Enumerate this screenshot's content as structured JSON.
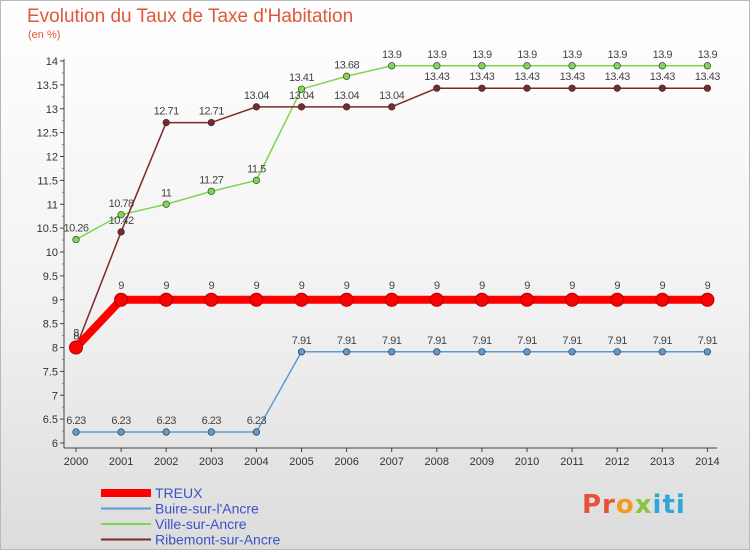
{
  "title": "Evolution du Taux de Taxe d'Habitation",
  "unit": "(en %)",
  "logo_text": "Proxiti",
  "chart_data": {
    "type": "line",
    "title": "Evolution du Taux de Taxe d'Habitation",
    "ylabel": "(en %)",
    "xlabel": "",
    "x": [
      "2000",
      "2001",
      "2002",
      "2003",
      "2004",
      "2005",
      "2006",
      "2007",
      "2008",
      "2009",
      "2010",
      "2011",
      "2012",
      "2013",
      "2014"
    ],
    "ylim": [
      6,
      14
    ],
    "yticks": [
      6,
      6.5,
      7,
      7.5,
      8,
      8.5,
      9,
      9.5,
      10,
      10.5,
      11,
      11.5,
      12,
      12.5,
      13,
      13.5,
      14
    ],
    "ytick_labels": [
      "6",
      "6.5",
      "7",
      "7.5",
      "8",
      "8.5",
      "9",
      "9.5",
      "10",
      "10.5",
      "11",
      "11.5",
      "12",
      "12.5",
      "13",
      "13.5",
      "14"
    ],
    "grid": false,
    "legend_position": "bottom-left",
    "series": [
      {
        "name": "TREUX",
        "color": "#ff0000",
        "values": [
          8,
          9,
          9,
          9,
          9,
          9,
          9,
          9,
          9,
          9,
          9,
          9,
          9,
          9,
          9
        ],
        "labels": [
          "8",
          "9",
          "9",
          "9",
          "9",
          "9",
          "9",
          "9",
          "9",
          "9",
          "9",
          "9",
          "9",
          "9",
          "9"
        ],
        "highlight": true
      },
      {
        "name": "Buire-sur-l'Ancre",
        "color": "#5b9bd5",
        "values": [
          6.23,
          6.23,
          6.23,
          6.23,
          6.23,
          7.91,
          7.91,
          7.91,
          7.91,
          7.91,
          7.91,
          7.91,
          7.91,
          7.91,
          7.91
        ],
        "labels": [
          "6.23",
          "6.23",
          "6.23",
          "6.23",
          "6.23",
          "7.91",
          "7.91",
          "7.91",
          "7.91",
          "7.91",
          "7.91",
          "7.91",
          "7.91",
          "7.91",
          "7.91"
        ]
      },
      {
        "name": "Ville-sur-Ancre",
        "color": "#7ed651",
        "values": [
          10.26,
          10.78,
          11,
          11.27,
          11.5,
          13.41,
          13.68,
          13.9,
          13.9,
          13.9,
          13.9,
          13.9,
          13.9,
          13.9,
          13.9
        ],
        "labels": [
          "10.26",
          "10.78",
          "11",
          "11.27",
          "11.5",
          "13.41",
          "13.68",
          "13.9",
          "13.9",
          "13.9",
          "13.9",
          "13.9",
          "13.9",
          "13.9",
          "13.9"
        ]
      },
      {
        "name": "Ribemont-sur-Ancre",
        "color": "#7a2a2a",
        "values": [
          8,
          10.42,
          12.71,
          12.71,
          13.04,
          13.04,
          13.04,
          13.04,
          13.43,
          13.43,
          13.43,
          13.43,
          13.43,
          13.43,
          13.43
        ],
        "labels": [
          "8",
          "10.42",
          "12.71",
          "12.71",
          "13.04",
          "13.04",
          "13.04",
          "13.04",
          "13.43",
          "13.43",
          "13.43",
          "13.43",
          "13.43",
          "13.43",
          "13.43"
        ]
      }
    ]
  }
}
